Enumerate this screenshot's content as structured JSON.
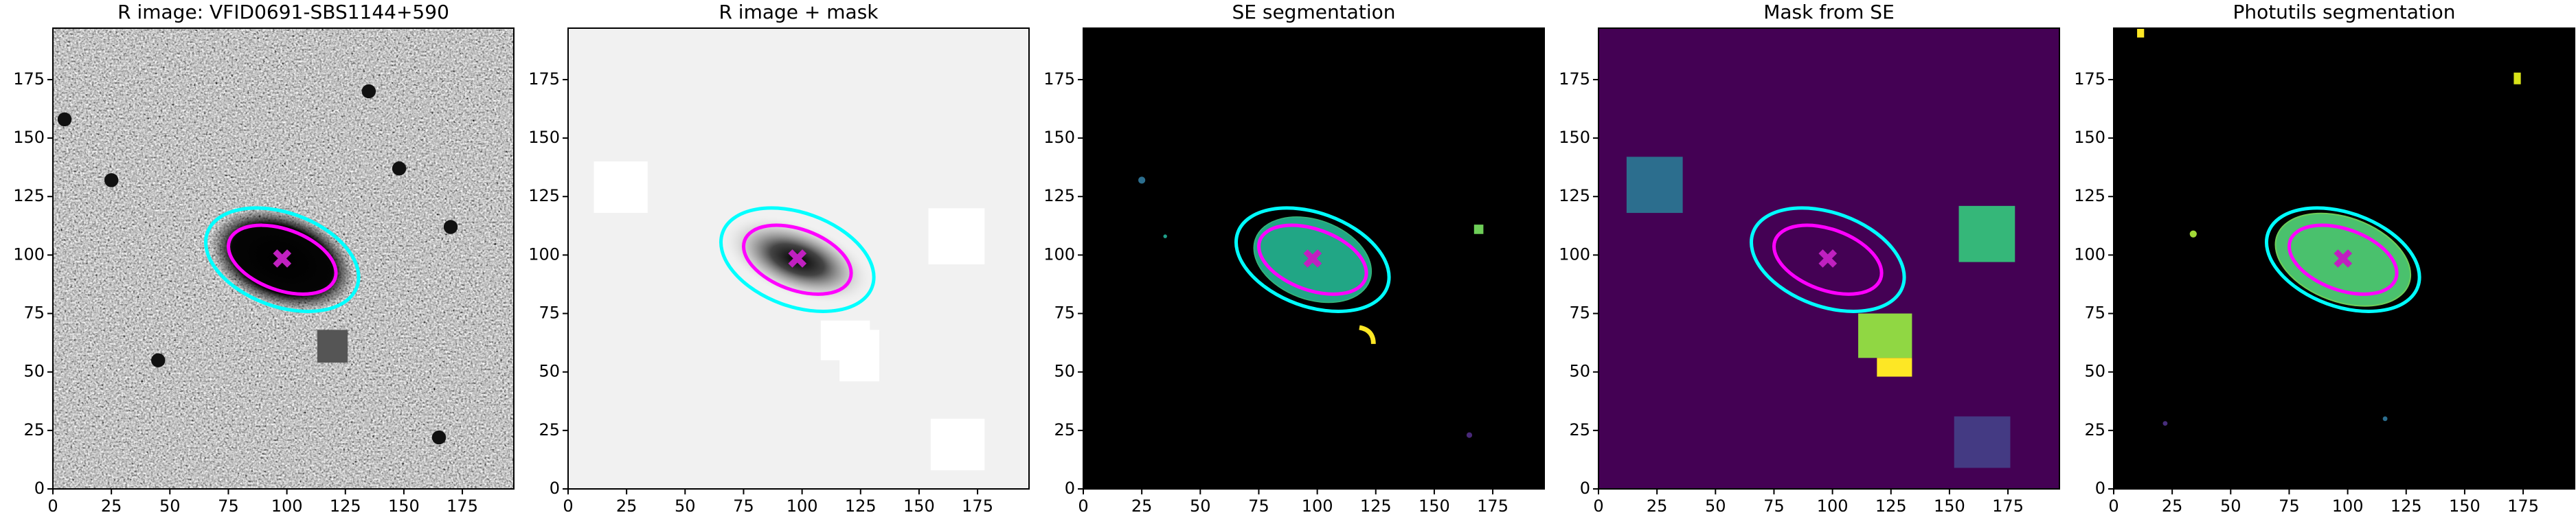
{
  "chart_data": [
    {
      "type": "image",
      "title": "R image: VFID0691-SBS1144+590",
      "xlim": [
        0,
        197
      ],
      "ylim": [
        0,
        197
      ],
      "xticks": [
        0,
        25,
        50,
        75,
        100,
        125,
        150,
        175
      ],
      "yticks": [
        0,
        25,
        50,
        75,
        100,
        125,
        150,
        175
      ]
    },
    {
      "type": "image",
      "title": "R image + mask",
      "xlim": [
        0,
        197
      ],
      "ylim": [
        0,
        197
      ],
      "xticks": [
        0,
        25,
        50,
        75,
        100,
        125,
        150,
        175
      ],
      "yticks": [
        0,
        25,
        50,
        75,
        100,
        125,
        150,
        175
      ]
    },
    {
      "type": "image",
      "title": "SE segmentation",
      "xlim": [
        0,
        197
      ],
      "ylim": [
        0,
        197
      ],
      "xticks": [
        0,
        25,
        50,
        75,
        100,
        125,
        150,
        175
      ],
      "yticks": [
        0,
        25,
        50,
        75,
        100,
        125,
        150,
        175
      ]
    },
    {
      "type": "image",
      "title": "Mask from SE",
      "xlim": [
        0,
        197
      ],
      "ylim": [
        0,
        197
      ],
      "xticks": [
        0,
        25,
        50,
        75,
        100,
        125,
        150,
        175
      ],
      "yticks": [
        0,
        25,
        50,
        75,
        100,
        125,
        150,
        175
      ]
    },
    {
      "type": "image",
      "title": "Photutils segmentation",
      "xlim": [
        0,
        197
      ],
      "ylim": [
        0,
        197
      ],
      "xticks": [
        0,
        25,
        50,
        75,
        100,
        125,
        150,
        175
      ],
      "yticks": [
        0,
        25,
        50,
        75,
        100,
        125,
        150,
        175
      ]
    }
  ]
}
